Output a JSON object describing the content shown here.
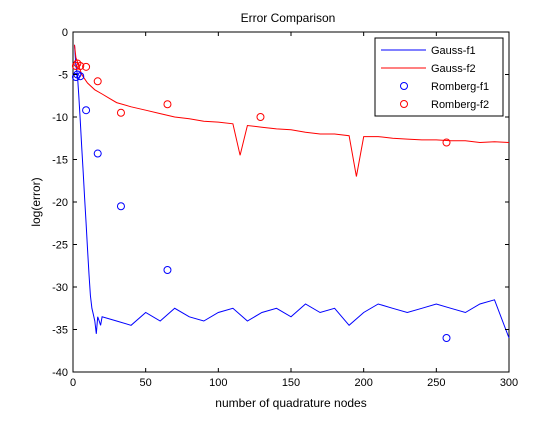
{
  "chart_data": {
    "type": "line",
    "title": "Error Comparison",
    "xlabel": "number of quadrature nodes",
    "ylabel": "log(error)",
    "xlim": [
      0,
      300
    ],
    "ylim": [
      -40,
      0
    ],
    "xticks": [
      0,
      50,
      100,
      150,
      200,
      250,
      300
    ],
    "yticks": [
      0,
      -5,
      -10,
      -15,
      -20,
      -25,
      -30,
      -35,
      -40
    ],
    "grid": false,
    "legend_position": "top-right",
    "series": [
      {
        "name": "Gauss-f1",
        "kind": "line",
        "color": "#0000ff",
        "x": [
          1,
          2,
          3,
          4,
          5,
          6,
          7,
          8,
          9,
          10,
          11,
          12,
          13,
          14,
          15,
          16,
          17,
          18,
          19,
          20,
          30,
          40,
          50,
          60,
          70,
          80,
          90,
          100,
          110,
          120,
          130,
          140,
          150,
          160,
          170,
          180,
          190,
          200,
          210,
          220,
          230,
          240,
          250,
          260,
          270,
          280,
          290,
          300
        ],
        "y": [
          -1.5,
          -4.0,
          -5.0,
          -7.5,
          -10.5,
          -13.5,
          -16.5,
          -19.5,
          -22.5,
          -25.5,
          -28.5,
          -31.0,
          -32.5,
          -33.2,
          -34.0,
          -35.5,
          -33.5,
          -34.0,
          -34.5,
          -33.5,
          -34.0,
          -34.5,
          -33.0,
          -34.0,
          -32.5,
          -33.5,
          -34.0,
          -33.0,
          -32.5,
          -34.0,
          -33.0,
          -32.5,
          -33.5,
          -32.0,
          -33.0,
          -32.5,
          -34.5,
          -33.0,
          -32.0,
          -32.5,
          -33.0,
          -32.5,
          -32.0,
          -32.5,
          -33.0,
          -32.0,
          -31.5,
          -36.0
        ]
      },
      {
        "name": "Gauss-f2",
        "kind": "line",
        "color": "#ff0000",
        "x": [
          1,
          2,
          3,
          4,
          5,
          6,
          8,
          10,
          15,
          20,
          25,
          30,
          40,
          50,
          60,
          70,
          80,
          90,
          100,
          110,
          115,
          120,
          130,
          140,
          150,
          160,
          170,
          180,
          190,
          195,
          200,
          210,
          220,
          230,
          240,
          250,
          260,
          270,
          280,
          290,
          300
        ],
        "y": [
          -1.5,
          -3.0,
          -3.5,
          -4.0,
          -4.5,
          -5.0,
          -5.5,
          -6.0,
          -6.8,
          -7.3,
          -7.8,
          -8.3,
          -8.8,
          -9.2,
          -9.6,
          -10.0,
          -10.2,
          -10.5,
          -10.6,
          -10.8,
          -14.5,
          -11.0,
          -11.2,
          -11.4,
          -11.5,
          -11.8,
          -12.0,
          -12.0,
          -12.2,
          -17.0,
          -12.3,
          -12.3,
          -12.5,
          -12.6,
          -12.7,
          -12.7,
          -12.8,
          -12.8,
          -13.0,
          -12.9,
          -13.0
        ]
      },
      {
        "name": "Romberg-f1",
        "kind": "marker",
        "color": "#0000ff",
        "x": [
          2,
          3,
          5,
          9,
          17,
          33,
          65,
          257
        ],
        "y": [
          -5.3,
          -5.0,
          -5.2,
          -9.2,
          -14.3,
          -20.5,
          -28.0,
          -36.0
        ]
      },
      {
        "name": "Romberg-f2",
        "kind": "marker",
        "color": "#ff0000",
        "x": [
          2,
          3,
          5,
          9,
          17,
          33,
          65,
          129,
          257
        ],
        "y": [
          -4.0,
          -3.7,
          -4.0,
          -4.1,
          -5.8,
          -9.5,
          -8.5,
          -10.0,
          -13.0
        ]
      }
    ]
  }
}
